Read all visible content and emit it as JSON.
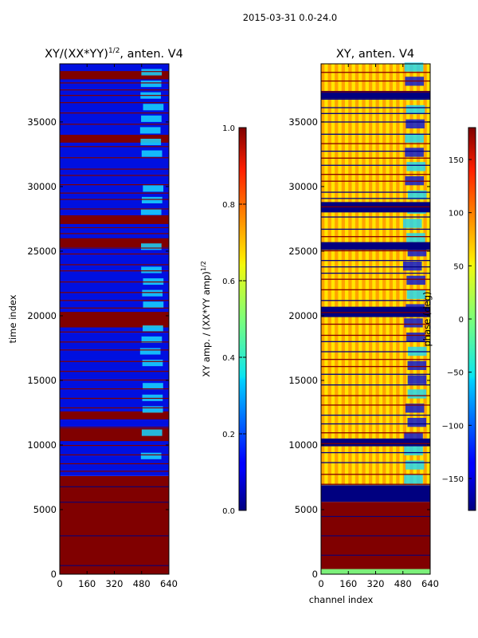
{
  "figure": {
    "suptitle": "2015-03-31 0.0-24.0",
    "xlabel": "channel index",
    "colors": {
      "dark_red": "#800000",
      "dark_blue": "#000080",
      "blue": "#0010e0",
      "cyan": "#18d8ff",
      "yellow": "#ffe600",
      "orange": "#ff8c00",
      "green": "#7cf07a",
      "red": "#e01000"
    }
  },
  "chart_data": [
    {
      "type": "heatmap",
      "title_prefix": "XY/(XX*YY)",
      "title_exponent": "1/2",
      "title_suffix": ", anten. V4",
      "ylabel": "time index",
      "xlim": [
        0,
        640
      ],
      "ylim": [
        0,
        39500
      ],
      "xticks": [
        0,
        160,
        320,
        480,
        640
      ],
      "yticks": [
        0,
        5000,
        10000,
        15000,
        20000,
        25000,
        30000,
        35000
      ],
      "colorbar": {
        "label_prefix": "XY amp. / (XX*YY amp)",
        "label_exponent": "1/2",
        "range": [
          0.0,
          1.0
        ],
        "ticks": [
          "0.0",
          "0.2",
          "0.4",
          "0.6",
          "0.8",
          "1.0"
        ]
      }
    },
    {
      "type": "heatmap",
      "title": "XY, anten. V4",
      "xlim": [
        0,
        640
      ],
      "ylim": [
        0,
        39500
      ],
      "xticks": [
        0,
        160,
        320,
        480,
        640
      ],
      "yticks": [
        0,
        5000,
        10000,
        15000,
        20000,
        25000,
        30000,
        35000
      ],
      "colorbar": {
        "label": "phase (deg)",
        "range": [
          -180,
          180
        ],
        "ticks": [
          "−150",
          "−100",
          "−50",
          "0",
          "50",
          "100",
          "150"
        ]
      }
    }
  ]
}
